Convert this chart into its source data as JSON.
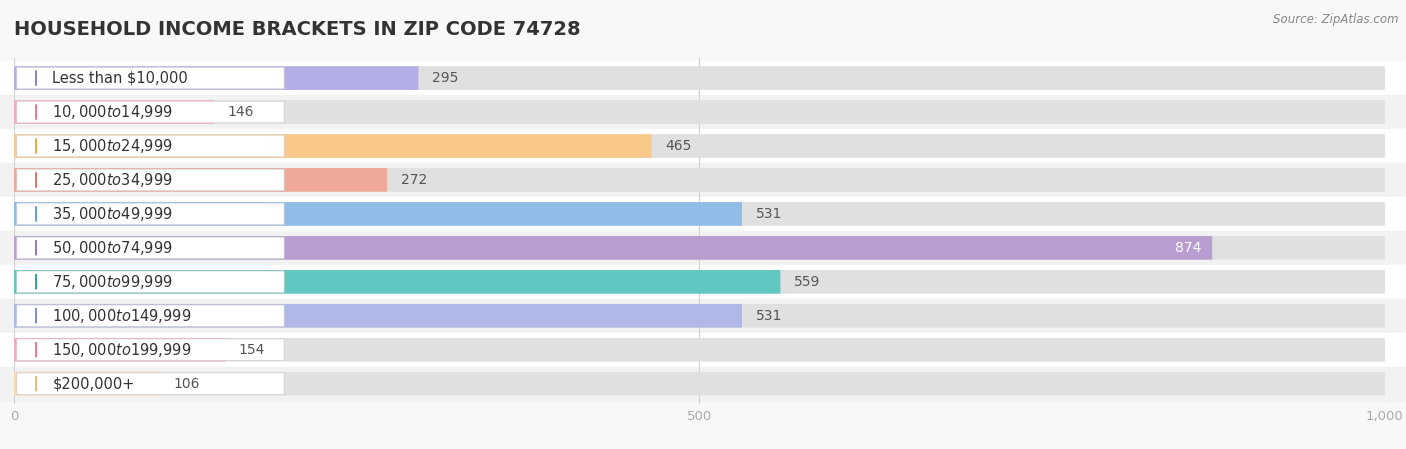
{
  "title": "HOUSEHOLD INCOME BRACKETS IN ZIP CODE 74728",
  "source": "Source: ZipAtlas.com",
  "categories": [
    "Less than $10,000",
    "$10,000 to $14,999",
    "$15,000 to $24,999",
    "$25,000 to $34,999",
    "$35,000 to $49,999",
    "$50,000 to $74,999",
    "$75,000 to $99,999",
    "$100,000 to $149,999",
    "$150,000 to $199,999",
    "$200,000+"
  ],
  "values": [
    295,
    146,
    465,
    272,
    531,
    874,
    559,
    531,
    154,
    106
  ],
  "bar_colors": [
    "#b3aee8",
    "#f9a8c0",
    "#f9c98a",
    "#f0a898",
    "#90bce8",
    "#b89ed0",
    "#60c8c0",
    "#b0b8e8",
    "#f9a8c0",
    "#f9d8b0"
  ],
  "dot_colors": [
    "#8a83d8",
    "#f07898",
    "#f0a840",
    "#e07868",
    "#60a0e0",
    "#9878c0",
    "#30a898",
    "#8090d8",
    "#f07898",
    "#f0b870"
  ],
  "xlim": [
    0,
    1000
  ],
  "xticks": [
    0,
    500,
    1000
  ],
  "row_bg_colors": [
    "#ffffff",
    "#f0f0f0"
  ],
  "bar_bg_color": "#e8e8e8",
  "title_fontsize": 14,
  "label_fontsize": 10.5,
  "value_fontsize": 10
}
